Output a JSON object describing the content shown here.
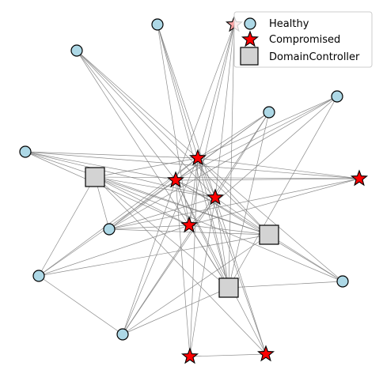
{
  "diagram": {
    "type": "network-graph",
    "colors": {
      "healthy": "#add8e6",
      "compromised": "#ff0000",
      "domain_controller": "#d3d3d3",
      "edge": "#808080"
    },
    "legend": {
      "placement": "top-right",
      "entries": [
        {
          "label": "Healthy",
          "shape": "circle"
        },
        {
          "label": "Compromised",
          "shape": "star"
        },
        {
          "label": "DomainController",
          "shape": "square"
        }
      ]
    }
  }
}
